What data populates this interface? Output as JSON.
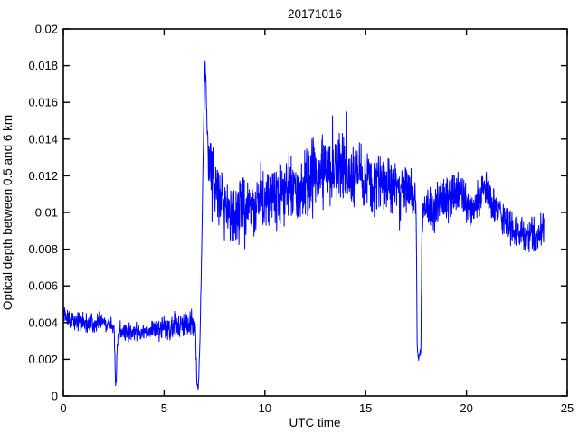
{
  "figure": {
    "title": "20171016",
    "xlabel": "UTC time",
    "ylabel": "Optical depth between 0.5 and 6 km"
  },
  "chart_data": {
    "type": "line",
    "title": "20171016",
    "xlabel": "UTC time",
    "ylabel": "Optical depth between 0.5 and 6 km",
    "xlim": [
      0,
      25
    ],
    "ylim": [
      0,
      0.02
    ],
    "xticks": [
      0,
      5,
      10,
      15,
      20,
      25
    ],
    "xtick_labels": [
      "0",
      "5",
      "10",
      "15",
      "20",
      "25"
    ],
    "yticks": [
      0,
      0.002,
      0.004,
      0.006,
      0.008,
      0.01,
      0.012,
      0.014,
      0.016,
      0.018,
      0.02
    ],
    "ytick_labels": [
      "0",
      "0.002",
      "0.004",
      "0.006",
      "0.008",
      "0.01",
      "0.012",
      "0.014",
      "0.016",
      "0.018",
      "0.02"
    ],
    "grid": false,
    "box": true,
    "tick_direction": "in",
    "line_color": "#0000ff",
    "axis_color": "#000000",
    "background_color": "#ffffff",
    "data_x_start": 0,
    "data_x_end": 23.85,
    "sample_step": 0.012,
    "noise_seed": 20171016,
    "series": [
      {
        "name": "optical-depth-0.5-6km",
        "description": "Noisy trace; keypoints are [utc_hour, center_value, noise_amplitude]. Features: baseline ~0.004 with narrow dip to ~0.0007 at 2.6; drop to ~0.0005 at 6.65 then sharp spike peaking 0.0183 at 7.03; decay to ~0.010 by 8.2; broad noisy hump rising to ~0.0125 at 13.6; decline to ~0.0106 by 17.5; sharp dip to ~0.002 at 17.56-17.74; recovery ~0.0105 with small bumps at 19.55 and 20.9-21.05; decline to ~0.0088 by 23, ending ~0.0092 at 23.85.",
        "keypoints": [
          [
            0.0,
            0.0043,
            0.00035
          ],
          [
            0.3,
            0.0042,
            0.00035
          ],
          [
            0.8,
            0.0041,
            0.00035
          ],
          [
            1.3,
            0.004,
            0.00035
          ],
          [
            1.8,
            0.004,
            0.00035
          ],
          [
            2.3,
            0.0039,
            0.0003
          ],
          [
            2.52,
            0.0038,
            0.00025
          ],
          [
            2.58,
            0.0009,
            0.0002
          ],
          [
            2.62,
            0.0007,
            0.0002
          ],
          [
            2.68,
            0.003,
            0.0003
          ],
          [
            2.8,
            0.0036,
            0.0003
          ],
          [
            3.2,
            0.0035,
            0.00035
          ],
          [
            3.7,
            0.0035,
            0.00035
          ],
          [
            4.2,
            0.0036,
            0.00035
          ],
          [
            4.7,
            0.0036,
            0.0004
          ],
          [
            5.2,
            0.0037,
            0.0004
          ],
          [
            5.7,
            0.0038,
            0.00045
          ],
          [
            6.1,
            0.0039,
            0.0005
          ],
          [
            6.35,
            0.004,
            0.0005
          ],
          [
            6.55,
            0.0038,
            0.0003
          ],
          [
            6.63,
            0.0006,
            0.00015
          ],
          [
            6.7,
            0.0005,
            0.00015
          ],
          [
            6.78,
            0.003,
            0.0002
          ],
          [
            6.88,
            0.009,
            0.0002
          ],
          [
            6.95,
            0.014,
            0.0002
          ],
          [
            7.03,
            0.0183,
            0.0002
          ],
          [
            7.1,
            0.016,
            0.0006
          ],
          [
            7.18,
            0.0138,
            0.001
          ],
          [
            7.35,
            0.0122,
            0.0012
          ],
          [
            7.6,
            0.0112,
            0.0012
          ],
          [
            7.9,
            0.0105,
            0.0011
          ],
          [
            8.2,
            0.0099,
            0.001
          ],
          [
            8.5,
            0.0098,
            0.001
          ],
          [
            8.8,
            0.0102,
            0.0011
          ],
          [
            9.2,
            0.0104,
            0.0012
          ],
          [
            9.6,
            0.0106,
            0.0012
          ],
          [
            10.0,
            0.0108,
            0.0012
          ],
          [
            10.4,
            0.0109,
            0.0012
          ],
          [
            10.8,
            0.0112,
            0.0013
          ],
          [
            11.2,
            0.0114,
            0.0013
          ],
          [
            11.6,
            0.0116,
            0.0013
          ],
          [
            12.0,
            0.0117,
            0.0013
          ],
          [
            12.4,
            0.0119,
            0.0013
          ],
          [
            12.8,
            0.0121,
            0.0013
          ],
          [
            13.2,
            0.0123,
            0.0013
          ],
          [
            13.6,
            0.0125,
            0.0013
          ],
          [
            13.9,
            0.0124,
            0.0013
          ],
          [
            14.3,
            0.0122,
            0.0012
          ],
          [
            14.7,
            0.012,
            0.0012
          ],
          [
            15.1,
            0.0118,
            0.0011
          ],
          [
            15.5,
            0.0116,
            0.0011
          ],
          [
            15.9,
            0.0114,
            0.001
          ],
          [
            16.3,
            0.0113,
            0.001
          ],
          [
            16.7,
            0.0114,
            0.0009
          ],
          [
            17.0,
            0.0112,
            0.0009
          ],
          [
            17.3,
            0.011,
            0.0008
          ],
          [
            17.5,
            0.0106,
            0.0005
          ],
          [
            17.56,
            0.0026,
            0.0003
          ],
          [
            17.62,
            0.002,
            0.0002
          ],
          [
            17.68,
            0.0022,
            0.0002
          ],
          [
            17.74,
            0.0024,
            0.0002
          ],
          [
            17.8,
            0.0098,
            0.0005
          ],
          [
            18.0,
            0.0103,
            0.0007
          ],
          [
            18.4,
            0.0102,
            0.0008
          ],
          [
            18.8,
            0.0104,
            0.0008
          ],
          [
            19.2,
            0.0108,
            0.0008
          ],
          [
            19.55,
            0.0112,
            0.0008
          ],
          [
            19.8,
            0.011,
            0.0008
          ],
          [
            20.1,
            0.0101,
            0.0007
          ],
          [
            20.45,
            0.0105,
            0.0007
          ],
          [
            20.8,
            0.0112,
            0.0007
          ],
          [
            21.05,
            0.0113,
            0.0007
          ],
          [
            21.4,
            0.0105,
            0.0007
          ],
          [
            21.8,
            0.0097,
            0.0007
          ],
          [
            22.2,
            0.0091,
            0.0006
          ],
          [
            22.6,
            0.0088,
            0.0006
          ],
          [
            23.0,
            0.0087,
            0.0006
          ],
          [
            23.4,
            0.0088,
            0.0006
          ],
          [
            23.85,
            0.0092,
            0.0005
          ]
        ]
      }
    ]
  }
}
